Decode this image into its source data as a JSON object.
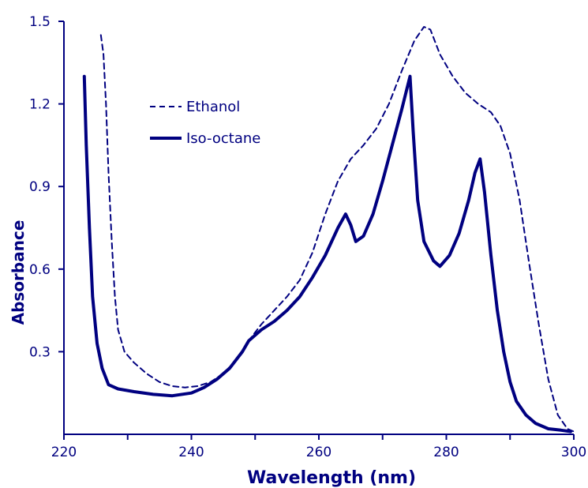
{
  "chart_data": {
    "type": "line",
    "title": "",
    "xlabel": "Wavelength (nm)",
    "ylabel": "Absorbance",
    "xlim": [
      220,
      300
    ],
    "ylim": [
      0,
      1.5
    ],
    "x_ticks": [
      220,
      240,
      260,
      280,
      300
    ],
    "x_minor_ticks": [
      230,
      250,
      270,
      290
    ],
    "y_ticks": [
      0.3,
      0.6,
      0.9,
      1.2,
      1.5
    ],
    "y_tick_labels": [
      "0.3",
      "0.6",
      "0.9",
      "1.2",
      "1.5"
    ],
    "grid": false,
    "legend_position": "top-left",
    "color": "#000080",
    "series": [
      {
        "name": "Ethanol",
        "style": "dashed",
        "points": [
          [
            225.8,
            1.45
          ],
          [
            226.2,
            1.38
          ],
          [
            226.6,
            1.2
          ],
          [
            227.0,
            0.95
          ],
          [
            227.5,
            0.7
          ],
          [
            228.0,
            0.5
          ],
          [
            228.5,
            0.38
          ],
          [
            229.5,
            0.3
          ],
          [
            231,
            0.26
          ],
          [
            233,
            0.22
          ],
          [
            235,
            0.19
          ],
          [
            237,
            0.175
          ],
          [
            239,
            0.17
          ],
          [
            241,
            0.175
          ],
          [
            243,
            0.19
          ],
          [
            245,
            0.22
          ],
          [
            247,
            0.27
          ],
          [
            249,
            0.34
          ],
          [
            251,
            0.4
          ],
          [
            253,
            0.45
          ],
          [
            255,
            0.5
          ],
          [
            257,
            0.56
          ],
          [
            259,
            0.66
          ],
          [
            261,
            0.8
          ],
          [
            263,
            0.92
          ],
          [
            265,
            1.0
          ],
          [
            267,
            1.05
          ],
          [
            269,
            1.11
          ],
          [
            271,
            1.2
          ],
          [
            273,
            1.32
          ],
          [
            275,
            1.43
          ],
          [
            276.5,
            1.48
          ],
          [
            277.5,
            1.47
          ],
          [
            279,
            1.38
          ],
          [
            281,
            1.3
          ],
          [
            283,
            1.24
          ],
          [
            285,
            1.2
          ],
          [
            287,
            1.17
          ],
          [
            288.5,
            1.12
          ],
          [
            290,
            1.02
          ],
          [
            291.5,
            0.85
          ],
          [
            293,
            0.62
          ],
          [
            294.5,
            0.4
          ],
          [
            296,
            0.2
          ],
          [
            297.5,
            0.07
          ],
          [
            299,
            0.02
          ],
          [
            300,
            0.01
          ]
        ]
      },
      {
        "name": "Iso-octane",
        "style": "solid",
        "points": [
          [
            223.2,
            1.3
          ],
          [
            223.5,
            1.05
          ],
          [
            224.0,
            0.75
          ],
          [
            224.5,
            0.5
          ],
          [
            225.2,
            0.33
          ],
          [
            226.0,
            0.24
          ],
          [
            227.0,
            0.18
          ],
          [
            228.5,
            0.165
          ],
          [
            231,
            0.155
          ],
          [
            234,
            0.145
          ],
          [
            237,
            0.14
          ],
          [
            240,
            0.15
          ],
          [
            242,
            0.17
          ],
          [
            244,
            0.2
          ],
          [
            246,
            0.24
          ],
          [
            248,
            0.3
          ],
          [
            249,
            0.34
          ],
          [
            251,
            0.38
          ],
          [
            253,
            0.41
          ],
          [
            255,
            0.45
          ],
          [
            257,
            0.5
          ],
          [
            259,
            0.57
          ],
          [
            261,
            0.65
          ],
          [
            263,
            0.75
          ],
          [
            264.2,
            0.8
          ],
          [
            265,
            0.76
          ],
          [
            265.8,
            0.7
          ],
          [
            267,
            0.72
          ],
          [
            268.5,
            0.8
          ],
          [
            270,
            0.92
          ],
          [
            271.5,
            1.05
          ],
          [
            273,
            1.18
          ],
          [
            274.3,
            1.3
          ],
          [
            274.8,
            1.1
          ],
          [
            275.5,
            0.85
          ],
          [
            276.5,
            0.7
          ],
          [
            278,
            0.63
          ],
          [
            279,
            0.61
          ],
          [
            280.5,
            0.65
          ],
          [
            282,
            0.73
          ],
          [
            283.5,
            0.85
          ],
          [
            284.5,
            0.95
          ],
          [
            285.3,
            1.0
          ],
          [
            286,
            0.88
          ],
          [
            287,
            0.65
          ],
          [
            288,
            0.45
          ],
          [
            289,
            0.3
          ],
          [
            290,
            0.19
          ],
          [
            291,
            0.12
          ],
          [
            292.5,
            0.07
          ],
          [
            294,
            0.04
          ],
          [
            296,
            0.02
          ],
          [
            298,
            0.015
          ],
          [
            299.5,
            0.01
          ]
        ]
      }
    ]
  }
}
